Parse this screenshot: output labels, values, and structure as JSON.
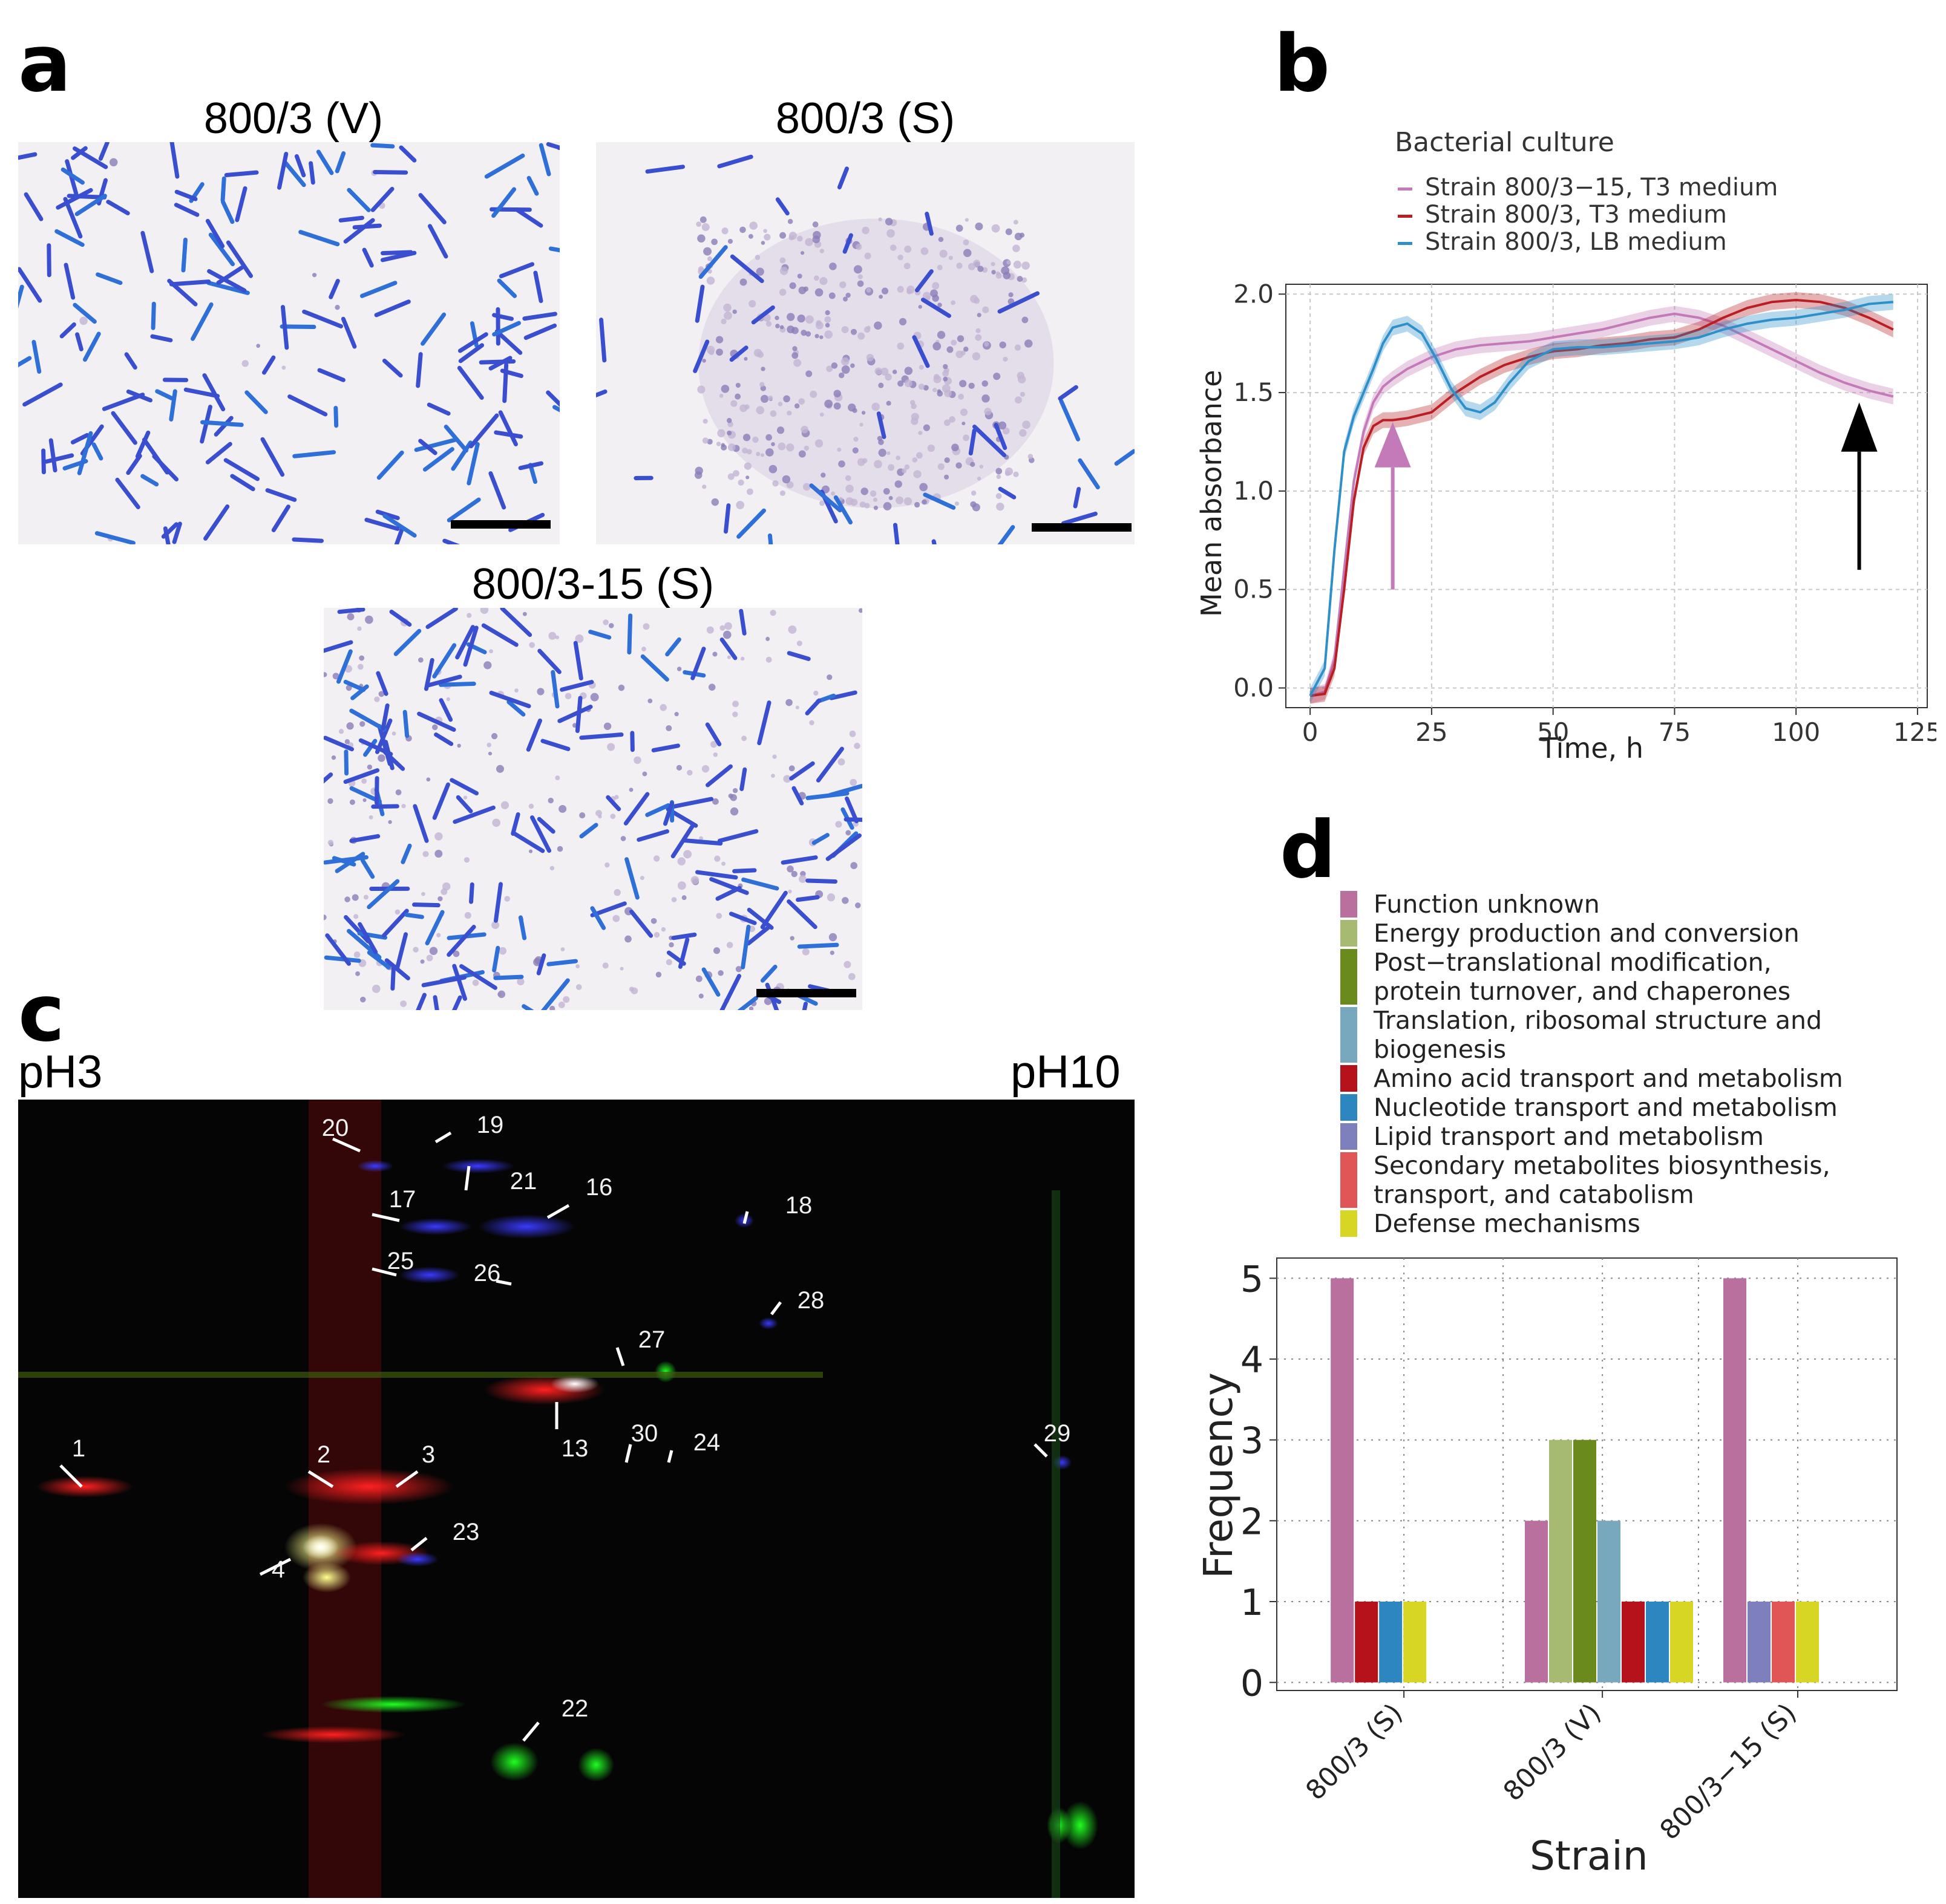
{
  "panels": {
    "a": {
      "letter": "a",
      "images": [
        {
          "title": "800/3 (V)"
        },
        {
          "title": "800/3 (S)"
        },
        {
          "title": "800/3-15 (S)"
        }
      ]
    },
    "b": {
      "letter": "b",
      "legend_title": "Bacterial culture"
    },
    "c": {
      "letter": "c",
      "ph_left": "pH3",
      "ph_right": "pH10",
      "spots": [
        "1",
        "2",
        "3",
        "4",
        "13",
        "16",
        "17",
        "18",
        "19",
        "20",
        "21",
        "22",
        "23",
        "24",
        "25",
        "26",
        "27",
        "28",
        "29",
        "30"
      ]
    },
    "d": {
      "letter": "d"
    }
  },
  "chart_data": [
    {
      "type": "line",
      "panel": "b",
      "xlabel": "Time, h",
      "ylabel": "Mean absorbance",
      "xlim": [
        -5,
        127
      ],
      "ylim": [
        -0.1,
        2.05
      ],
      "xticks": [
        0,
        25,
        50,
        75,
        100,
        125
      ],
      "yticks": [
        0.0,
        0.5,
        1.0,
        1.5,
        2.0
      ],
      "ytick_labels": [
        "0.0",
        "0.5",
        "1.0",
        "1.5",
        "2.0"
      ],
      "grid": true,
      "legend_title": "Bacterial culture",
      "legend_position": "top",
      "series": [
        {
          "name": "Strain 800/3−15, T3 medium",
          "color": "#c47ab8",
          "x": [
            0,
            3,
            5,
            7,
            9,
            11,
            13,
            15,
            17,
            20,
            25,
            30,
            35,
            40,
            45,
            50,
            55,
            60,
            65,
            70,
            75,
            80,
            85,
            90,
            95,
            100,
            105,
            110,
            115,
            120
          ],
          "y": [
            -0.04,
            -0.02,
            0.15,
            0.6,
            1.05,
            1.3,
            1.45,
            1.53,
            1.57,
            1.62,
            1.68,
            1.72,
            1.74,
            1.75,
            1.76,
            1.78,
            1.8,
            1.82,
            1.85,
            1.88,
            1.9,
            1.88,
            1.84,
            1.78,
            1.72,
            1.66,
            1.6,
            1.55,
            1.51,
            1.48
          ]
        },
        {
          "name": "Strain 800/3, T3 medium",
          "color": "#b81f24",
          "x": [
            0,
            3,
            5,
            7,
            9,
            11,
            13,
            15,
            17,
            20,
            25,
            30,
            35,
            40,
            45,
            50,
            55,
            60,
            65,
            70,
            75,
            80,
            85,
            90,
            95,
            100,
            105,
            110,
            115,
            120
          ],
          "y": [
            -0.04,
            -0.03,
            0.1,
            0.5,
            0.95,
            1.22,
            1.33,
            1.36,
            1.36,
            1.37,
            1.4,
            1.5,
            1.58,
            1.64,
            1.68,
            1.71,
            1.72,
            1.74,
            1.75,
            1.77,
            1.78,
            1.82,
            1.88,
            1.93,
            1.96,
            1.97,
            1.96,
            1.93,
            1.88,
            1.82
          ]
        },
        {
          "name": "Strain 800/3, LB medium",
          "color": "#2f8fc9",
          "x": [
            0,
            3,
            5,
            7,
            9,
            11,
            13,
            15,
            17,
            20,
            23,
            26,
            29,
            32,
            35,
            38,
            41,
            45,
            50,
            55,
            60,
            65,
            70,
            75,
            80,
            85,
            90,
            95,
            100,
            105,
            110,
            115,
            120
          ],
          "y": [
            -0.04,
            0.1,
            0.7,
            1.2,
            1.38,
            1.5,
            1.62,
            1.75,
            1.83,
            1.85,
            1.8,
            1.67,
            1.52,
            1.42,
            1.4,
            1.45,
            1.55,
            1.66,
            1.72,
            1.73,
            1.73,
            1.74,
            1.75,
            1.76,
            1.78,
            1.82,
            1.85,
            1.87,
            1.88,
            1.9,
            1.92,
            1.95,
            1.96
          ]
        }
      ]
    },
    {
      "type": "bar",
      "panel": "d",
      "xlabel": "Strain",
      "ylabel": "Frequency",
      "ylim": [
        -0.1,
        5.25
      ],
      "yticks": [
        0,
        1,
        2,
        3,
        4,
        5
      ],
      "grid": true,
      "legend_position": "top",
      "categories": [
        "800/3 (S)",
        "800/3 (V)",
        "800/3−15 (S)"
      ],
      "series": [
        {
          "name": "Function unknown",
          "color": "#b9709e",
          "values": [
            5,
            2,
            5
          ]
        },
        {
          "name": "Energy production and conversion",
          "color": "#a6ba72",
          "values": [
            0,
            3,
            0
          ]
        },
        {
          "name": "Post−translational modification, protein turnover, and chaperones",
          "color": "#6b8a1e",
          "values": [
            0,
            3,
            0
          ]
        },
        {
          "name": "Translation, ribosomal structure and biogenesis",
          "color": "#78a8bd",
          "values": [
            0,
            2,
            0
          ]
        },
        {
          "name": "Amino acid transport and metabolism",
          "color": "#b5121b",
          "values": [
            1,
            1,
            0
          ]
        },
        {
          "name": "Nucleotide transport and metabolism",
          "color": "#2e86c1",
          "values": [
            1,
            1,
            0
          ]
        },
        {
          "name": "Lipid transport and metabolism",
          "color": "#7d80bd",
          "values": [
            0,
            0,
            1
          ]
        },
        {
          "name": "Secondary metabolites biosynthesis, transport, and catabolism",
          "color": "#e05656",
          "values": [
            0,
            0,
            1
          ]
        },
        {
          "name": "Defense mechanisms",
          "color": "#d8d624",
          "values": [
            1,
            1,
            1
          ]
        }
      ],
      "legend_lines": [
        [
          "Function unknown"
        ],
        [
          "Energy production and conversion"
        ],
        [
          "Post−translational modification,",
          "protein turnover, and chaperones"
        ],
        [
          "Translation, ribosomal structure and",
          "biogenesis"
        ],
        [
          "Amino acid transport and metabolism"
        ],
        [
          "Nucleotide transport and metabolism"
        ],
        [
          "Lipid transport and metabolism"
        ],
        [
          "Secondary metabolites biosynthesis,",
          "transport, and catabolism"
        ],
        [
          "Defense mechanisms"
        ]
      ]
    }
  ]
}
